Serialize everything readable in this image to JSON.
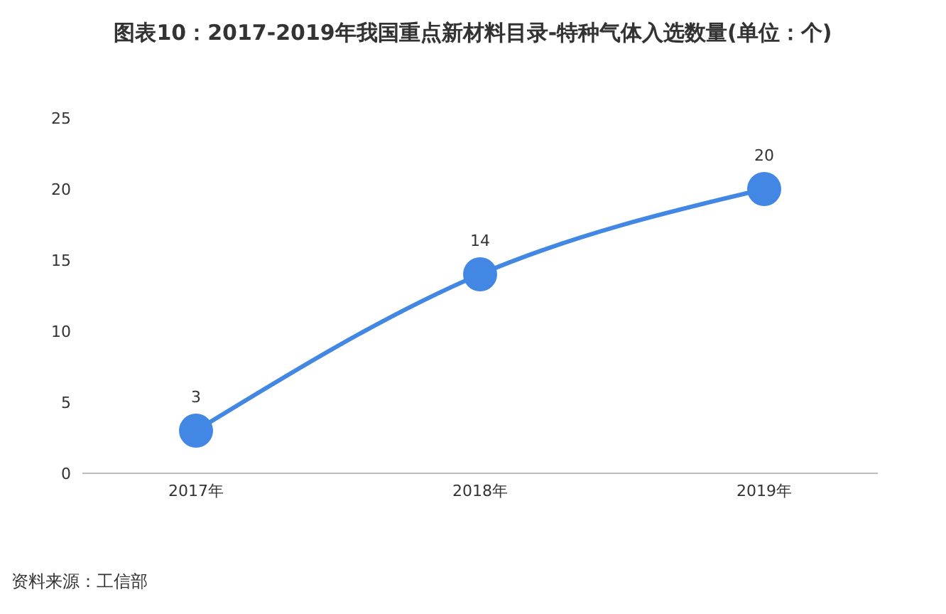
{
  "chart_data": {
    "type": "line",
    "title": "图表10：2017-2019年我国重点新材料目录-特种气体入选数量(单位：个)",
    "categories": [
      "2017年",
      "2018年",
      "2019年"
    ],
    "series": [
      {
        "color": "#4187e3",
        "values": [
          3,
          14,
          20
        ]
      }
    ],
    "ylim": [
      0,
      25
    ],
    "yticks": [
      0,
      5,
      10,
      15,
      20,
      25
    ],
    "grid": false,
    "legend": false,
    "marker": "circle",
    "line_style": "solid",
    "data_labels": true,
    "annotations": [
      "资料来源：工信部"
    ]
  }
}
